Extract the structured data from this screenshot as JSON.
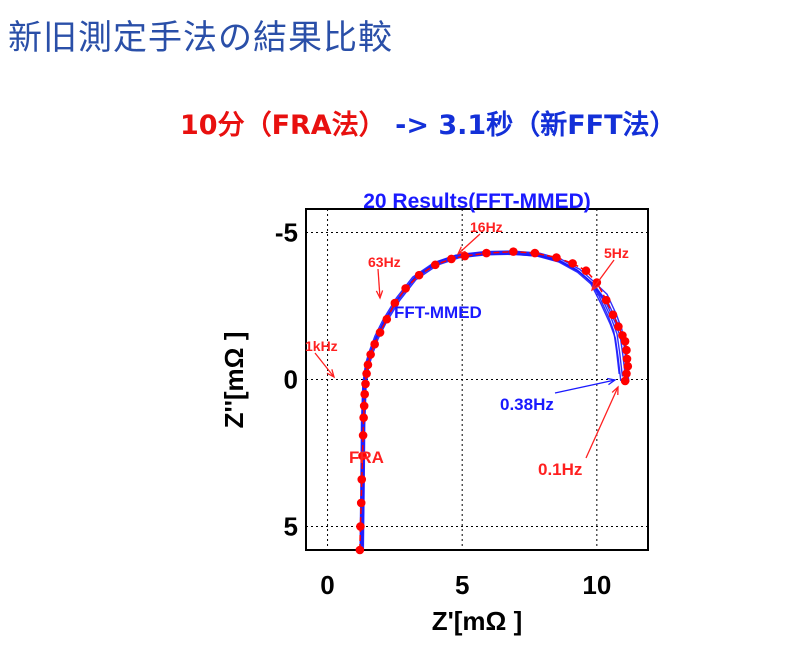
{
  "page": {
    "title": "新旧測定手法の結果比較",
    "subtitle_fra": "10分（FRA法）",
    "subtitle_arrow": " -> ",
    "subtitle_fft": "3.1秒（新FFT法）"
  },
  "colors": {
    "fra": "#ff0000",
    "fft": "#1a1aff",
    "title": "#2a4fa8",
    "axis": "#000000"
  },
  "chart_data": {
    "type": "scatter",
    "title": "20 Results(FFT-MMED)",
    "xlabel": "Z'[mΩ ]",
    "ylabel": "Z''[mΩ ]",
    "xlim": [
      -0.8,
      11.9
    ],
    "ylim": [
      -5.8,
      5.8
    ],
    "y_inverted": true,
    "grid": "dotted",
    "x_ticks": [
      0,
      5,
      10
    ],
    "x_tick_labels": [
      "0",
      "5",
      "10"
    ],
    "y_ticks": [
      -5,
      0,
      5
    ],
    "y_tick_labels": [
      "-5",
      "0",
      "5"
    ],
    "series": [
      {
        "name": "FRA",
        "x": [
          1.2,
          1.22,
          1.25,
          1.27,
          1.3,
          1.32,
          1.34,
          1.36,
          1.38,
          1.41,
          1.45,
          1.5,
          1.6,
          1.75,
          1.95,
          2.2,
          2.5,
          2.9,
          3.4,
          4.0,
          4.6,
          5.1,
          5.9,
          6.9,
          7.7,
          8.5,
          9.1,
          9.6,
          10.0,
          10.35,
          10.6,
          10.8,
          10.95,
          11.05,
          11.1,
          11.12,
          11.15,
          11.1,
          11.05
        ],
        "y": [
          5.8,
          5.0,
          4.2,
          3.4,
          2.6,
          1.9,
          1.3,
          0.9,
          0.5,
          0.15,
          -0.2,
          -0.5,
          -0.85,
          -1.2,
          -1.6,
          -2.05,
          -2.6,
          -3.1,
          -3.55,
          -3.9,
          -4.1,
          -4.2,
          -4.3,
          -4.35,
          -4.3,
          -4.15,
          -3.95,
          -3.7,
          -3.3,
          -2.7,
          -2.2,
          -1.8,
          -1.5,
          -1.3,
          -1.0,
          -0.7,
          -0.45,
          -0.2,
          0.05
        ]
      },
      {
        "name": "FFT-MMED",
        "x": [
          1.25,
          1.28,
          1.3,
          1.35,
          1.45,
          1.6,
          1.8,
          2.1,
          2.6,
          3.2,
          4.0,
          4.8,
          5.8,
          6.8,
          7.8,
          8.6,
          9.3,
          9.8,
          10.2,
          10.55,
          10.75,
          10.85,
          10.9,
          10.95
        ],
        "y": [
          5.7,
          3.5,
          1.5,
          0.2,
          -0.5,
          -0.95,
          -1.45,
          -2.0,
          -2.75,
          -3.45,
          -3.95,
          -4.2,
          -4.3,
          -4.32,
          -4.25,
          -4.05,
          -3.7,
          -3.3,
          -2.75,
          -2.05,
          -1.55,
          -0.9,
          -0.5,
          -0.1
        ]
      }
    ],
    "annotations": [
      {
        "text": "16Hz",
        "color": "red",
        "x": 5.1,
        "y": -4.25
      },
      {
        "text": "63Hz",
        "color": "red",
        "x": 2.6,
        "y": -2.7
      },
      {
        "text": "5Hz",
        "color": "red",
        "x": 10.1,
        "y": -3.4
      },
      {
        "text": "1kHz",
        "color": "red",
        "x": 1.28,
        "y": -1.15
      },
      {
        "text": "FFT-MMED",
        "color": "blue"
      },
      {
        "text": "FRA",
        "color": "red"
      },
      {
        "text": "0.38Hz",
        "color": "blue",
        "x": 10.95,
        "y": -0.05
      },
      {
        "text": "0.1Hz",
        "color": "red",
        "x": 11.05,
        "y": 0.05
      }
    ]
  }
}
